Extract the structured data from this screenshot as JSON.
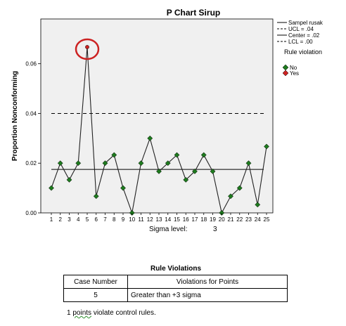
{
  "chart_data": {
    "type": "line",
    "title": "P Chart Sirup",
    "ylabel": "Proportion Nonconforming",
    "xlabel": "Sigma level:",
    "sigma_level": "3",
    "ylim": [
      0,
      0.078
    ],
    "yticks": [
      0.0,
      0.02,
      0.04,
      0.06
    ],
    "ytick_labels": [
      "0.00",
      "0.02",
      "0.04",
      "0.06"
    ],
    "x": [
      1,
      2,
      3,
      4,
      5,
      6,
      7,
      8,
      9,
      10,
      11,
      12,
      13,
      14,
      15,
      16,
      17,
      18,
      19,
      20,
      21,
      22,
      23,
      24,
      25
    ],
    "series": [
      {
        "name": "Sampel rusak",
        "values": [
          0.01,
          0.02,
          0.0133,
          0.02,
          0.0667,
          0.0067,
          0.02,
          0.0233,
          0.01,
          0.0,
          0.02,
          0.03,
          0.0167,
          0.02,
          0.0233,
          0.0133,
          0.0167,
          0.0233,
          0.0167,
          0.0,
          0.0067,
          0.01,
          0.02,
          0.0033,
          0.0267
        ]
      }
    ],
    "control_lines": [
      {
        "label": "UCL = .04",
        "value": 0.04,
        "style": "dashed"
      },
      {
        "label": "Center = .02",
        "value": 0.0175,
        "style": "solid"
      },
      {
        "label": "LCL = .00",
        "value": 0.0,
        "style": "dashed"
      }
    ],
    "violations": [
      5
    ],
    "legend": {
      "placement": "right",
      "rule_title": "Rule violation",
      "no_label": "No",
      "yes_label": "Yes",
      "no_color": "#1e7a1e",
      "yes_color": "#cc2222"
    },
    "grid": false
  },
  "rule_violations": {
    "title": "Rule Violations",
    "headers": [
      "Case Number",
      "Violations for Points"
    ],
    "rows": [
      {
        "case": "5",
        "violation": "Greater than +3 sigma"
      }
    ],
    "footnote_count": "1",
    "footnote_word": "points",
    "footnote_rest": "violate control rules."
  }
}
